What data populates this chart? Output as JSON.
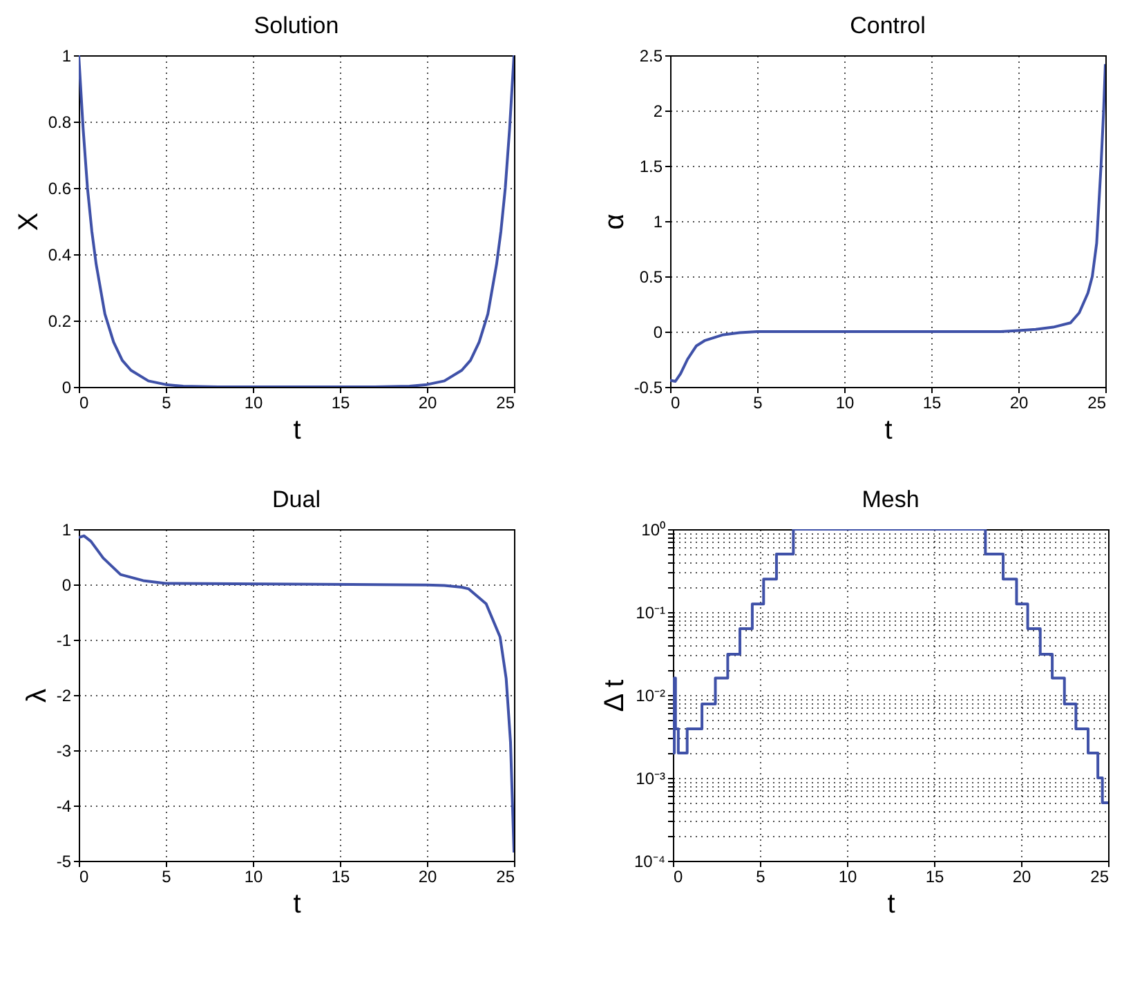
{
  "chart_data": [
    {
      "type": "line",
      "title": "Solution",
      "xlabel": "t",
      "ylabel": "X",
      "xlim": [
        0,
        25
      ],
      "ylim": [
        0,
        1
      ],
      "xticks": [
        0,
        5,
        10,
        15,
        20,
        25
      ],
      "yticks": [
        0,
        0.2,
        0.4,
        0.6,
        0.8,
        1
      ],
      "grid": true,
      "series": [
        {
          "color": "#3f51a8",
          "x": [
            0,
            0.25,
            0.5,
            0.75,
            1,
            1.5,
            2,
            2.5,
            3,
            4,
            5,
            6,
            8,
            17,
            19,
            20,
            21,
            22,
            22.5,
            23,
            23.5,
            24,
            24.25,
            24.5,
            24.75,
            25
          ],
          "values": [
            1,
            0.78,
            0.6,
            0.47,
            0.37,
            0.22,
            0.135,
            0.08,
            0.05,
            0.018,
            0.007,
            0.002,
            0,
            0,
            0.002,
            0.007,
            0.018,
            0.05,
            0.08,
            0.135,
            0.22,
            0.37,
            0.47,
            0.6,
            0.78,
            1
          ]
        }
      ]
    },
    {
      "type": "line",
      "title": "Control",
      "xlabel": "t",
      "ylabel": "α",
      "xlim": [
        0,
        25
      ],
      "ylim": [
        -0.5,
        2.5
      ],
      "xticks": [
        0,
        5,
        10,
        15,
        20,
        25
      ],
      "yticks": [
        -0.5,
        0,
        0.5,
        1,
        1.5,
        2,
        2.5
      ],
      "grid": true,
      "series": [
        {
          "color": "#3f51a8",
          "x": [
            0,
            0.3,
            0.6,
            1,
            1.5,
            2,
            3,
            4,
            5,
            19,
            20,
            21,
            22,
            23,
            23.5,
            24,
            24.25,
            24.5,
            24.75,
            24.9,
            25
          ],
          "values": [
            -0.44,
            -0.45,
            -0.38,
            -0.25,
            -0.13,
            -0.08,
            -0.03,
            -0.01,
            0,
            0,
            0.01,
            0.02,
            0.04,
            0.08,
            0.17,
            0.35,
            0.5,
            0.8,
            1.5,
            2.0,
            2.42
          ]
        }
      ]
    },
    {
      "type": "line",
      "title": "Dual",
      "xlabel": "t",
      "ylabel": "λ",
      "xlim": [
        0,
        25
      ],
      "ylim": [
        -5,
        1
      ],
      "xticks": [
        0,
        5,
        10,
        15,
        20,
        25
      ],
      "yticks": [
        -5,
        -4,
        -3,
        -2,
        -1,
        0,
        1
      ],
      "grid": true,
      "series": [
        {
          "color": "#3f51a8",
          "x": [
            0,
            0.3,
            0.7,
            1.4,
            2.4,
            3.7,
            5,
            20,
            21,
            22,
            22.4,
            23.4,
            24.2,
            24.55,
            24.8,
            25
          ],
          "values": [
            0.85,
            0.88,
            0.78,
            0.48,
            0.18,
            0.07,
            0.02,
            -0.01,
            -0.02,
            -0.05,
            -0.08,
            -0.35,
            -0.95,
            -1.7,
            -2.85,
            -4.85
          ]
        }
      ]
    },
    {
      "type": "step",
      "title": "Mesh",
      "xlabel": "t",
      "ylabel": "Δ t",
      "log": "y",
      "xlim": [
        0,
        25
      ],
      "ylim": [
        0.0001,
        1
      ],
      "xticks": [
        0,
        5,
        10,
        15,
        20,
        25
      ],
      "yticks": [
        {
          "value": 0.0001,
          "label": "10⁻⁴"
        },
        {
          "value": 0.0002,
          "label": null
        },
        {
          "value": 0.0003,
          "label": null
        },
        {
          "value": 0.0004,
          "label": null
        },
        {
          "value": 0.0005,
          "label": null
        },
        {
          "value": 0.0006,
          "label": null
        },
        {
          "value": 0.0007,
          "label": null
        },
        {
          "value": 0.0008,
          "label": null
        },
        {
          "value": 0.0009,
          "label": null
        },
        {
          "value": 0.001,
          "label": "10⁻³"
        },
        {
          "value": 0.002,
          "label": null
        },
        {
          "value": 0.003,
          "label": null
        },
        {
          "value": 0.004,
          "label": null
        },
        {
          "value": 0.005,
          "label": null
        },
        {
          "value": 0.006,
          "label": null
        },
        {
          "value": 0.007,
          "label": null
        },
        {
          "value": 0.008,
          "label": null
        },
        {
          "value": 0.009,
          "label": null
        },
        {
          "value": 0.01,
          "label": "10⁻²"
        },
        {
          "value": 0.02,
          "label": null
        },
        {
          "value": 0.03,
          "label": null
        },
        {
          "value": 0.04,
          "label": null
        },
        {
          "value": 0.05,
          "label": null
        },
        {
          "value": 0.06,
          "label": null
        },
        {
          "value": 0.07,
          "label": null
        },
        {
          "value": 0.08,
          "label": null
        },
        {
          "value": 0.09,
          "label": null
        },
        {
          "value": 0.1,
          "label": "10⁻¹"
        },
        {
          "value": 0.2,
          "label": null
        },
        {
          "value": 0.3,
          "label": null
        },
        {
          "value": 0.4,
          "label": null
        },
        {
          "value": 0.5,
          "label": null
        },
        {
          "value": 0.6,
          "label": null
        },
        {
          "value": 0.7,
          "label": null
        },
        {
          "value": 0.8,
          "label": null
        },
        {
          "value": 0.9,
          "label": null
        },
        {
          "value": 1,
          "label": "10⁰"
        }
      ],
      "grid": true,
      "series": [
        {
          "color": "#3f51a8",
          "x": [
            0,
            0.08,
            0.15,
            0.31,
            0.82,
            1.67,
            2.44,
            3.15,
            3.85,
            4.56,
            5.21,
            5.95,
            6.92,
            17.95,
            18.97,
            19.74,
            20.38,
            21.1,
            21.79,
            22.49,
            23.15,
            23.85,
            24.41,
            24.67,
            25
          ],
          "values": [
            0.002,
            0.016,
            0.0039,
            0.002,
            0.0039,
            0.0078,
            0.016,
            0.031,
            0.063,
            0.125,
            0.25,
            0.5,
            1,
            0.5,
            0.25,
            0.125,
            0.063,
            0.031,
            0.016,
            0.0078,
            0.0039,
            0.002,
            0.001,
            0.0005,
            0.0005
          ]
        }
      ]
    }
  ]
}
